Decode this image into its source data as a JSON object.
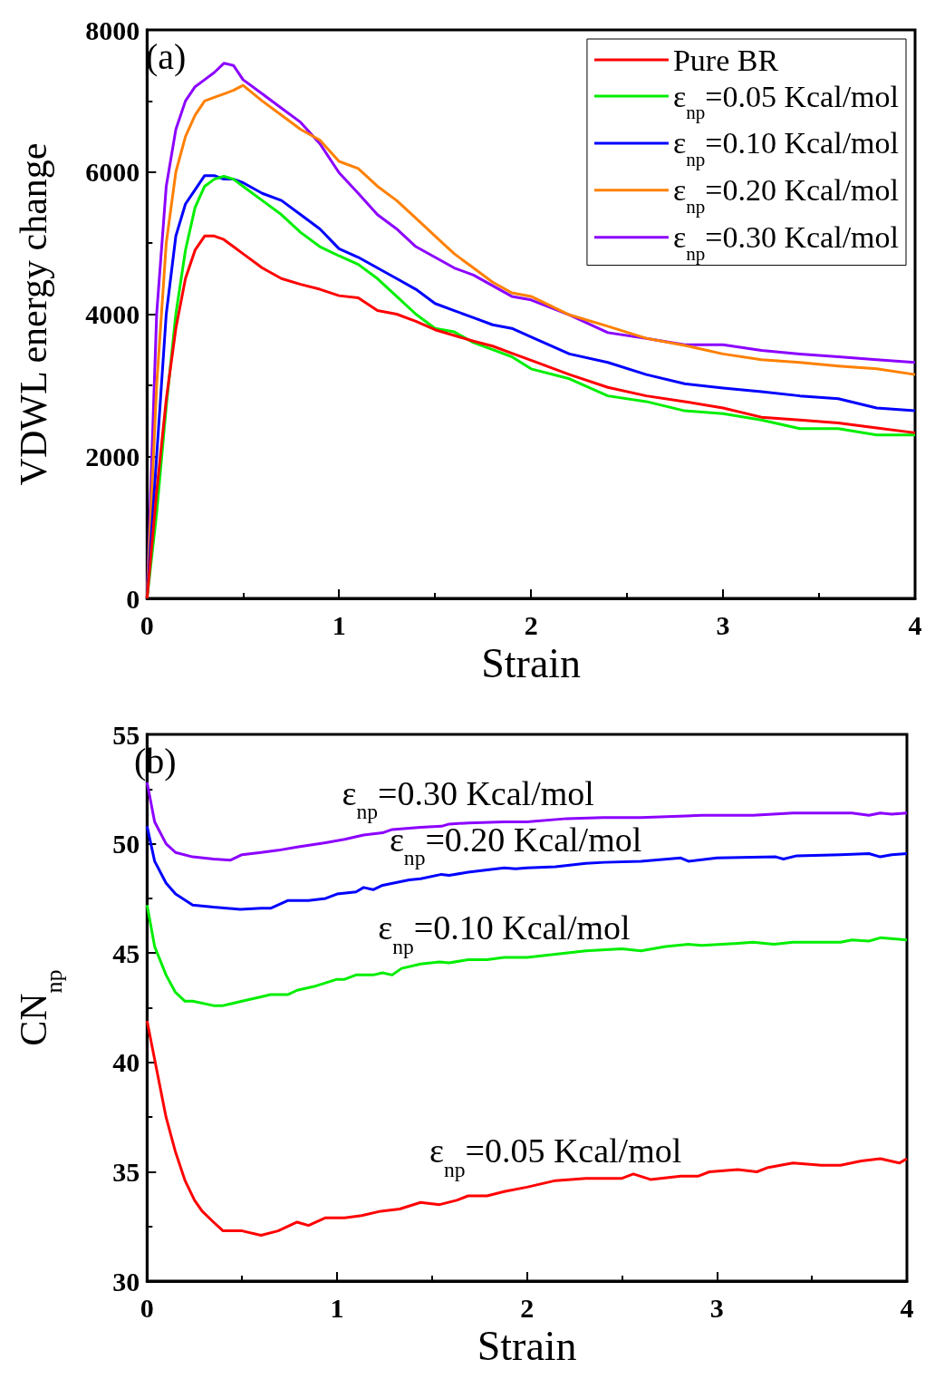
{
  "chart_data": [
    {
      "type": "line",
      "title": "(a)",
      "xlabel": "Strain",
      "ylabel": "VDWL energy change",
      "xlim": [
        0,
        4
      ],
      "xticks": [
        0,
        1,
        2,
        3,
        4
      ],
      "ylim": [
        0,
        8000
      ],
      "yticks": [
        0,
        2000,
        4000,
        6000,
        8000
      ],
      "grid": false,
      "legend": "top right",
      "x": [
        0,
        0.05,
        0.1,
        0.15,
        0.2,
        0.25,
        0.3,
        0.35,
        0.4,
        0.45,
        0.5,
        0.6,
        0.7,
        0.8,
        0.9,
        1.0,
        1.1,
        1.2,
        1.3,
        1.4,
        1.5,
        1.6,
        1.7,
        1.8,
        1.9,
        2.0,
        2.2,
        2.4,
        2.6,
        2.8,
        3.0,
        3.2,
        3.4,
        3.6,
        3.8,
        4.0
      ],
      "series": [
        {
          "name": "Pure BR",
          "color": "#ff0000",
          "values": [
            0,
            1500,
            2800,
            3800,
            4500,
            4900,
            5100,
            5100,
            5050,
            4950,
            4850,
            4650,
            4500,
            4420,
            4350,
            4260,
            4230,
            4050,
            4000,
            3900,
            3780,
            3700,
            3620,
            3550,
            3450,
            3350,
            3150,
            2970,
            2850,
            2770,
            2680,
            2550,
            2510,
            2470,
            2400,
            2330
          ]
        },
        {
          "name": "ε$_{np}$=0.05 Kcal/mol",
          "color": "#00ee00",
          "values": [
            0,
            1200,
            2700,
            4000,
            4900,
            5500,
            5800,
            5900,
            5940,
            5900,
            5800,
            5600,
            5400,
            5150,
            4950,
            4820,
            4700,
            4500,
            4250,
            4000,
            3800,
            3750,
            3600,
            3500,
            3400,
            3230,
            3090,
            2850,
            2770,
            2640,
            2600,
            2510,
            2390,
            2390,
            2300,
            2300
          ]
        },
        {
          "name": "ε$_{np}$=0.10 Kcal/mol",
          "color": "#0000ff",
          "values": [
            0,
            2000,
            4000,
            5100,
            5550,
            5750,
            5950,
            5950,
            5900,
            5900,
            5850,
            5700,
            5600,
            5400,
            5200,
            4920,
            4800,
            4650,
            4500,
            4350,
            4150,
            4050,
            3950,
            3850,
            3800,
            3680,
            3440,
            3320,
            3150,
            3020,
            2960,
            2910,
            2850,
            2810,
            2680,
            2640
          ]
        },
        {
          "name": "ε$_{np}$=0.20 Kcal/mol",
          "color": "#ff8000",
          "values": [
            0,
            3000,
            5000,
            6000,
            6500,
            6800,
            7000,
            7050,
            7100,
            7150,
            7220,
            7000,
            6800,
            6600,
            6450,
            6150,
            6050,
            5800,
            5600,
            5350,
            5100,
            4850,
            4650,
            4450,
            4300,
            4250,
            3990,
            3830,
            3660,
            3560,
            3440,
            3360,
            3320,
            3270,
            3230,
            3150
          ]
        },
        {
          "name": "ε$_{np}$=0.30 Kcal/mol",
          "color": "#8c00ff",
          "values": [
            0,
            4000,
            5800,
            6600,
            7000,
            7200,
            7300,
            7400,
            7530,
            7500,
            7300,
            7100,
            6900,
            6700,
            6400,
            5990,
            5700,
            5400,
            5200,
            4950,
            4800,
            4650,
            4550,
            4400,
            4250,
            4200,
            3990,
            3740,
            3660,
            3570,
            3570,
            3490,
            3440,
            3400,
            3360,
            3320
          ]
        }
      ]
    },
    {
      "type": "line",
      "title": "(b)",
      "xlabel": "Strain",
      "ylabel": "CN$_{np}$",
      "xlim": [
        0,
        4
      ],
      "xticks": [
        0,
        1,
        2,
        3,
        4
      ],
      "ylim": [
        30,
        55
      ],
      "yticks": [
        30,
        35,
        40,
        45,
        50,
        55
      ],
      "grid": false,
      "legend": false,
      "series": [
        {
          "name": "ε$_{np}$=0.30 Kcal/mol",
          "color": "#8c00ff",
          "x": [
            0,
            0.04,
            0.1,
            0.15,
            0.24,
            0.35,
            0.44,
            0.5,
            0.6,
            0.69,
            0.79,
            0.94,
            1.04,
            1.14,
            1.24,
            1.29,
            1.44,
            1.55,
            1.59,
            1.69,
            1.88,
            2.0,
            2.21,
            2.4,
            2.6,
            2.92,
            3.19,
            3.4,
            3.71,
            3.8,
            3.86,
            3.92,
            4.0
          ],
          "values": [
            52.8,
            51.0,
            50.0,
            49.6,
            49.4,
            49.3,
            49.25,
            49.5,
            49.6,
            49.7,
            49.85,
            50.05,
            50.2,
            50.4,
            50.5,
            50.65,
            50.75,
            50.8,
            50.9,
            50.95,
            51.0,
            51.0,
            51.15,
            51.2,
            51.2,
            51.3,
            51.3,
            51.4,
            51.4,
            51.3,
            51.4,
            51.35,
            51.4
          ]
        },
        {
          "name": "ε$_{np}$=0.20 Kcal/mol",
          "color": "#0000ff",
          "x": [
            0,
            0.04,
            0.1,
            0.15,
            0.24,
            0.35,
            0.49,
            0.6,
            0.65,
            0.74,
            0.85,
            0.94,
            1.0,
            1.1,
            1.14,
            1.19,
            1.24,
            1.38,
            1.44,
            1.55,
            1.59,
            1.69,
            1.79,
            1.88,
            1.94,
            2.0,
            2.15,
            2.31,
            2.41,
            2.6,
            2.81,
            2.85,
            3.0,
            3.31,
            3.35,
            3.42,
            3.65,
            3.8,
            3.86,
            3.92,
            4.0
          ],
          "values": [
            50.8,
            49.2,
            48.2,
            47.7,
            47.2,
            47.1,
            47.0,
            47.05,
            47.05,
            47.4,
            47.4,
            47.5,
            47.7,
            47.8,
            48.0,
            47.9,
            48.1,
            48.35,
            48.4,
            48.6,
            48.55,
            48.7,
            48.8,
            48.9,
            48.85,
            48.9,
            48.95,
            49.1,
            49.15,
            49.2,
            49.35,
            49.2,
            49.35,
            49.4,
            49.3,
            49.45,
            49.5,
            49.55,
            49.4,
            49.5,
            49.55
          ]
        },
        {
          "name": "ε$_{np}$=0.10 Kcal/mol",
          "color": "#00ee00",
          "x": [
            0,
            0.04,
            0.1,
            0.15,
            0.2,
            0.24,
            0.35,
            0.4,
            0.5,
            0.6,
            0.65,
            0.74,
            0.79,
            0.89,
            1.0,
            1.04,
            1.1,
            1.19,
            1.24,
            1.29,
            1.34,
            1.44,
            1.54,
            1.59,
            1.69,
            1.79,
            1.88,
            2.0,
            2.15,
            2.31,
            2.5,
            2.6,
            2.73,
            2.85,
            2.92,
            3.11,
            3.19,
            3.3,
            3.4,
            3.53,
            3.65,
            3.71,
            3.8,
            3.86,
            4.0
          ],
          "values": [
            47.2,
            45.3,
            44.0,
            43.2,
            42.8,
            42.8,
            42.6,
            42.6,
            42.8,
            43.0,
            43.1,
            43.1,
            43.3,
            43.5,
            43.8,
            43.8,
            44.0,
            44.0,
            44.1,
            44.0,
            44.3,
            44.5,
            44.6,
            44.55,
            44.7,
            44.7,
            44.8,
            44.8,
            44.95,
            45.1,
            45.2,
            45.1,
            45.3,
            45.4,
            45.35,
            45.45,
            45.5,
            45.4,
            45.5,
            45.5,
            45.5,
            45.6,
            45.55,
            45.7,
            45.6
          ]
        },
        {
          "name": "ε$_{np}$=0.05 Kcal/mol",
          "color": "#ff0000",
          "x": [
            0,
            0.1,
            0.15,
            0.2,
            0.25,
            0.29,
            0.35,
            0.4,
            0.5,
            0.6,
            0.69,
            0.79,
            0.85,
            0.94,
            1.04,
            1.13,
            1.23,
            1.33,
            1.44,
            1.54,
            1.63,
            1.69,
            1.79,
            1.88,
            2.0,
            2.15,
            2.31,
            2.5,
            2.56,
            2.65,
            2.81,
            2.9,
            2.96,
            3.11,
            3.21,
            3.27,
            3.4,
            3.55,
            3.65,
            3.76,
            3.86,
            3.96,
            4.0
          ],
          "values": [
            41.9,
            37.5,
            35.9,
            34.6,
            33.7,
            33.2,
            32.7,
            32.3,
            32.3,
            32.1,
            32.3,
            32.7,
            32.55,
            32.9,
            32.9,
            33.0,
            33.2,
            33.3,
            33.6,
            33.5,
            33.7,
            33.9,
            33.9,
            34.1,
            34.3,
            34.6,
            34.7,
            34.7,
            34.9,
            34.65,
            34.8,
            34.8,
            35.0,
            35.1,
            35.0,
            35.2,
            35.4,
            35.3,
            35.3,
            35.5,
            35.6,
            35.4,
            35.6
          ]
        }
      ]
    }
  ]
}
